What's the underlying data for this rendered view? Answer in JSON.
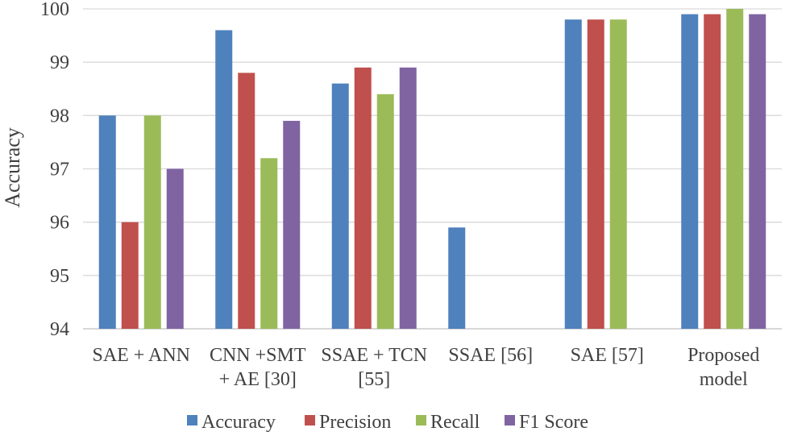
{
  "chart_data": {
    "type": "bar",
    "title": "",
    "xlabel": "",
    "ylabel": "Accuracy",
    "ylim": [
      94,
      100
    ],
    "yticks": [
      "94",
      "95",
      "96",
      "97",
      "98",
      "99",
      "100"
    ],
    "grid": true,
    "legend_position": "bottom",
    "categories": [
      [
        "SAE + ANN"
      ],
      [
        "CNN +SMT",
        "+ AE [30]"
      ],
      [
        "SSAE + TCN",
        "[55]"
      ],
      [
        "SSAE [56]"
      ],
      [
        "SAE [57]"
      ],
      [
        "Proposed",
        "model"
      ]
    ],
    "series": [
      {
        "name": "Accuracy",
        "color": "#4F81BD",
        "values": [
          98.0,
          99.6,
          98.6,
          95.9,
          99.8,
          99.9
        ]
      },
      {
        "name": "Precision",
        "color": "#C0504D",
        "values": [
          96.0,
          98.8,
          98.9,
          null,
          99.8,
          99.9
        ]
      },
      {
        "name": "Recall",
        "color": "#9BBB59",
        "values": [
          98.0,
          97.2,
          98.4,
          null,
          99.8,
          100.0
        ]
      },
      {
        "name": "F1 Score",
        "color": "#8064A2",
        "values": [
          97.0,
          97.9,
          98.9,
          null,
          null,
          99.9
        ]
      }
    ]
  }
}
